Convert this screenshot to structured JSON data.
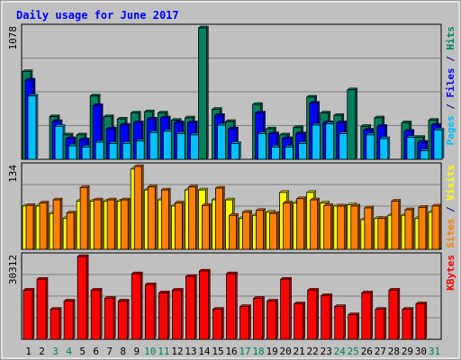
{
  "chart_data": {
    "type": "bar",
    "title": "Daily usage for June 2017",
    "x": [
      "1",
      "2",
      "3",
      "4",
      "5",
      "6",
      "7",
      "8",
      "9",
      "10",
      "11",
      "12",
      "13",
      "14",
      "15",
      "16",
      "17",
      "18",
      "19",
      "20",
      "21",
      "22",
      "23",
      "24",
      "25",
      "26",
      "27",
      "28",
      "29",
      "30",
      "31"
    ],
    "weekend_days": [
      3,
      4,
      10,
      11,
      17,
      18,
      24,
      25,
      31
    ],
    "panels": [
      {
        "name": "hits-files-pages",
        "ymax_label": "1078",
        "ymax": 1078,
        "side_label": [
          {
            "text": "Pages",
            "color": "#00c0ff"
          },
          {
            "text": " / ",
            "color": "#000080"
          },
          {
            "text": "Files",
            "color": "#0000ff"
          },
          {
            "text": " / ",
            "color": "#000080"
          },
          {
            "text": "Hits",
            "color": "#00805c"
          }
        ],
        "series": [
          {
            "name": "Hits",
            "color": "#00805c",
            "values": [
              720,
              0,
              350,
              200,
              200,
              520,
              350,
              330,
              380,
              390,
              380,
              320,
              340,
              1078,
              410,
              310,
              0,
              450,
              250,
              200,
              260,
              510,
              380,
              360,
              570,
              270,
              340,
              0,
              300,
              180,
              320
            ]
          },
          {
            "name": "Files",
            "color": "#0000ff",
            "values": [
              650,
              0,
              310,
              170,
              160,
              440,
              250,
              280,
              300,
              330,
              340,
              300,
              300,
              0,
              360,
              250,
              0,
              380,
              210,
              170,
              210,
              460,
              300,
              300,
              0,
              240,
              270,
              0,
              230,
              140,
              280
            ]
          },
          {
            "name": "Pages",
            "color": "#00c0ff",
            "values": [
              520,
              0,
              270,
              110,
              100,
              140,
              130,
              130,
              150,
              220,
              230,
              210,
              200,
              0,
              280,
              130,
              0,
              210,
              100,
              100,
              130,
              280,
              290,
              210,
              0,
              200,
              170,
              0,
              180,
              70,
              240
            ]
          }
        ]
      },
      {
        "name": "visits-sites",
        "ymax_label": "134",
        "ymax": 134,
        "side_label": [
          {
            "text": "Sites",
            "color": "#ff8000"
          },
          {
            "text": " / ",
            "color": "#000080"
          },
          {
            "text": "Visits",
            "color": "#ffff00"
          }
        ],
        "series": [
          {
            "name": "Visits",
            "color": "#ffff00",
            "values": [
              70,
              70,
              58,
              50,
              78,
              78,
              78,
              78,
              130,
              96,
              80,
              70,
              96,
              96,
              80,
              80,
              50,
              55,
              60,
              92,
              75,
              92,
              75,
              70,
              72,
              48,
              50,
              55,
              55,
              50,
              60
            ]
          },
          {
            "name": "Sites",
            "color": "#ff8000",
            "values": [
              71,
              75,
              80,
              59,
              100,
              80,
              80,
              80,
              134,
              101,
              96,
              75,
              101,
              71,
              99,
              55,
              60,
              63,
              58,
              75,
              82,
              80,
              71,
              70,
              70,
              67,
              50,
              78,
              64,
              68,
              70
            ]
          }
        ]
      },
      {
        "name": "kbytes",
        "ymax_label": "30312",
        "ymax": 30312,
        "side_label": [
          {
            "text": "KBytes",
            "color": "#ff0000"
          }
        ],
        "series": [
          {
            "name": "KBytes",
            "color": "#ff0000",
            "values": [
              18000,
              22000,
              11000,
              14000,
              30312,
              18000,
              15000,
              14000,
              24000,
              20000,
              17000,
              18000,
              23000,
              25000,
              11000,
              24000,
              12000,
              15000,
              14000,
              22000,
              13000,
              18000,
              16000,
              12000,
              9000,
              17000,
              11000,
              18000,
              11000,
              13000,
              0
            ]
          }
        ]
      }
    ]
  }
}
